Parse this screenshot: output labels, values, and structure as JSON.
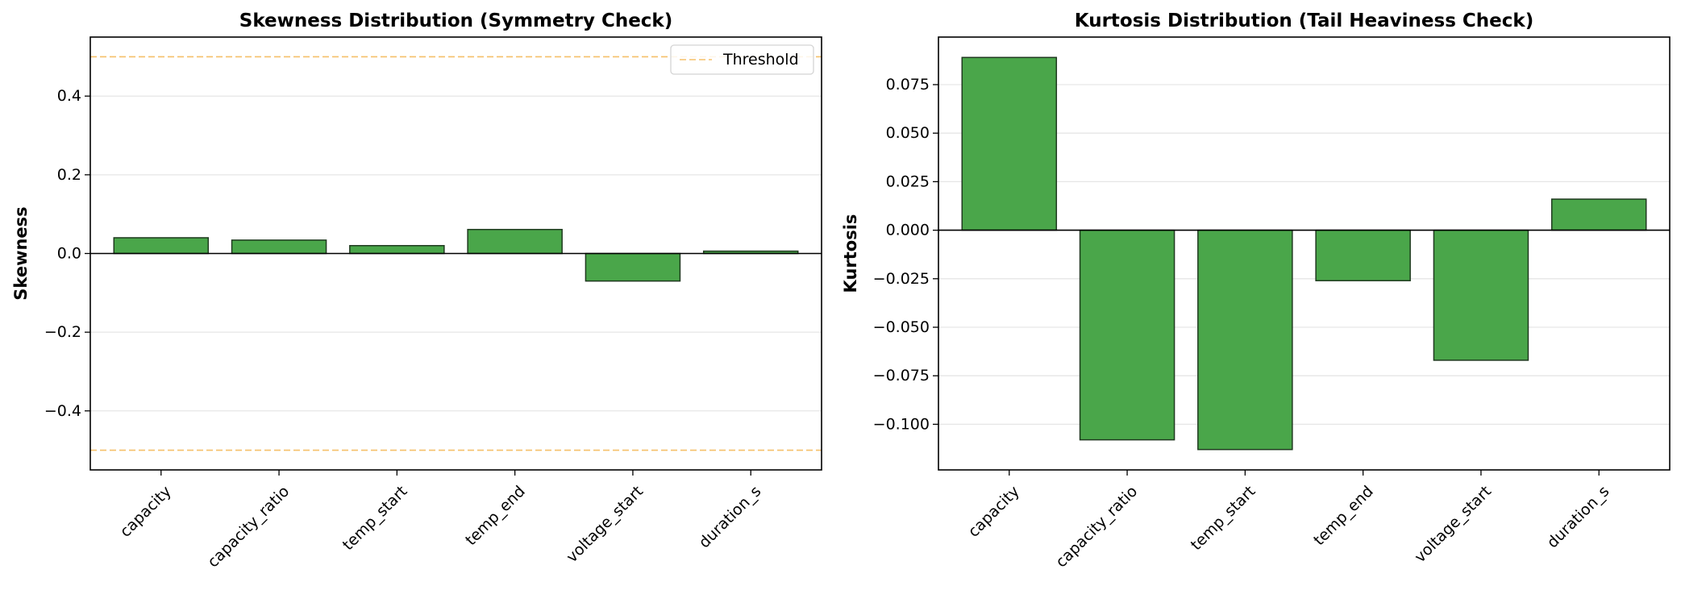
{
  "chart_data": [
    {
      "type": "bar",
      "title": "Skewness Distribution (Symmetry Check)",
      "xlabel": "",
      "ylabel": "Skewness",
      "categories": [
        "capacity",
        "capacity_ratio",
        "temp_start",
        "temp_end",
        "voltage_start",
        "duration_s"
      ],
      "values": [
        0.04,
        0.034,
        0.02,
        0.061,
        -0.07,
        0.006
      ],
      "ylim": [
        -0.55,
        0.55
      ],
      "yticks": [
        -0.4,
        -0.2,
        0.0,
        0.2,
        0.4
      ],
      "ytick_labels": [
        "−0.4",
        "−0.2",
        "0.0",
        "0.2",
        "0.4"
      ],
      "thresholds": [
        0.5,
        -0.5
      ],
      "legend": {
        "label": "Threshold",
        "position": "top-right"
      },
      "bar_color": "#4aa64a",
      "threshold_color": "#f5c06a",
      "grid": "y"
    },
    {
      "type": "bar",
      "title": "Kurtosis Distribution (Tail Heaviness Check)",
      "xlabel": "",
      "ylabel": "Kurtosis",
      "categories": [
        "capacity",
        "capacity_ratio",
        "temp_start",
        "temp_end",
        "voltage_start",
        "duration_s"
      ],
      "values": [
        0.089,
        -0.108,
        -0.113,
        -0.026,
        -0.067,
        0.016
      ],
      "ylim": [
        -0.1235,
        0.0995
      ],
      "yticks": [
        -0.1,
        -0.075,
        -0.05,
        -0.025,
        0.0,
        0.025,
        0.05,
        0.075
      ],
      "ytick_labels": [
        "−0.100",
        "−0.075",
        "−0.050",
        "−0.025",
        "0.000",
        "0.025",
        "0.050",
        "0.075"
      ],
      "bar_color": "#4aa64a",
      "grid": "y"
    }
  ]
}
